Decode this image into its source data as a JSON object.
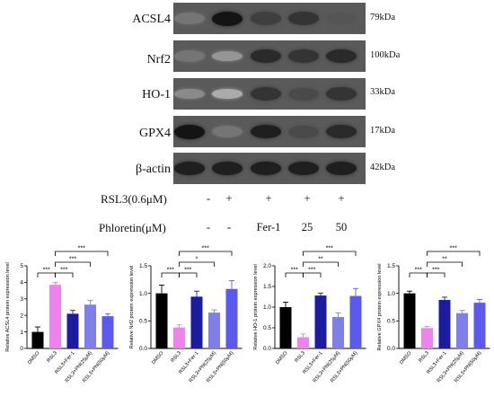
{
  "blot": {
    "rows": [
      {
        "protein": "ACSL4",
        "size": "79kDa",
        "intensity": [
          0.55,
          1.0,
          0.8,
          0.85,
          0.7
        ]
      },
      {
        "protein": "Nrf2",
        "size": "100kDa",
        "intensity": [
          0.55,
          0.4,
          0.9,
          0.85,
          0.9
        ]
      },
      {
        "protein": "HO-1",
        "size": "33kDa",
        "intensity": [
          0.45,
          0.3,
          0.85,
          0.75,
          0.85
        ]
      },
      {
        "protein": "GPX4",
        "size": "17kDa",
        "intensity": [
          1.0,
          0.55,
          0.95,
          0.75,
          0.9
        ]
      },
      {
        "protein": "β-actin",
        "size": "42kDa",
        "intensity": [
          0.95,
          0.95,
          0.95,
          0.95,
          0.95
        ]
      }
    ]
  },
  "treatments": [
    {
      "label": "RSL3(0.6μM)",
      "values": [
        "-",
        "+",
        "+",
        "+",
        "+"
      ]
    },
    {
      "label": "Phloretin(μM)",
      "values": [
        "-",
        "-",
        "Fer-1",
        "25",
        "50"
      ]
    }
  ],
  "colors": [
    "#000000",
    "#ee82ee",
    "#1c1ca0",
    "#7f7fea",
    "#5a5aee"
  ],
  "chart_data": [
    {
      "type": "bar",
      "ylabel": "Relative ACSL4 protein expression level",
      "ylim": [
        0,
        5
      ],
      "yticks": [
        0,
        1,
        2,
        3,
        4,
        5
      ],
      "categories": [
        "DMSO",
        "RSL3",
        "RSL3+Fer-1",
        "RSL3+Phl(25μM)",
        "RSL3+Phl(50μM)"
      ],
      "values": [
        1.0,
        3.85,
        2.1,
        2.65,
        1.95
      ],
      "errors": [
        0.3,
        0.15,
        0.2,
        0.25,
        0.15
      ],
      "significance": [
        {
          "from": 0,
          "to": 1,
          "label": "***"
        },
        {
          "from": 1,
          "to": 2,
          "label": "***"
        },
        {
          "from": 1,
          "to": 3,
          "label": "***"
        },
        {
          "from": 1,
          "to": 4,
          "label": "***"
        }
      ]
    },
    {
      "type": "bar",
      "ylabel": "Relative Nrf2 protein expression level",
      "ylim": [
        0,
        1.5
      ],
      "yticks": [
        0.0,
        0.5,
        1.0,
        1.5
      ],
      "categories": [
        "DMSO",
        "RSL3",
        "RSL3+Fer-1",
        "RSL3+Phl(25μM)",
        "RSL3+Phl(50μM)"
      ],
      "values": [
        1.0,
        0.38,
        0.94,
        0.65,
        1.08
      ],
      "errors": [
        0.15,
        0.05,
        0.1,
        0.05,
        0.15
      ],
      "significance": [
        {
          "from": 0,
          "to": 1,
          "label": "***"
        },
        {
          "from": 1,
          "to": 2,
          "label": "***"
        },
        {
          "from": 1,
          "to": 3,
          "label": "*"
        },
        {
          "from": 1,
          "to": 4,
          "label": "***"
        }
      ]
    },
    {
      "type": "bar",
      "ylabel": "Relative HO-1 protein expression level",
      "ylim": [
        0,
        2.0
      ],
      "yticks": [
        0.0,
        0.5,
        1.0,
        1.5,
        2.0
      ],
      "categories": [
        "DMSO",
        "RSL3",
        "RSL3+Fer-1",
        "RSL3+Phl(25μM)",
        "RSL3+Phl(50μM)"
      ],
      "values": [
        1.0,
        0.27,
        1.28,
        0.76,
        1.27
      ],
      "errors": [
        0.12,
        0.08,
        0.06,
        0.1,
        0.18
      ],
      "significance": [
        {
          "from": 0,
          "to": 1,
          "label": "***"
        },
        {
          "from": 1,
          "to": 2,
          "label": "***"
        },
        {
          "from": 1,
          "to": 3,
          "label": "**"
        },
        {
          "from": 1,
          "to": 4,
          "label": "***"
        }
      ]
    },
    {
      "type": "bar",
      "ylabel": "Relative GPX4 protein expression level",
      "ylim": [
        0,
        1.5
      ],
      "yticks": [
        0.0,
        0.5,
        1.0,
        1.5
      ],
      "categories": [
        "DMSO",
        "RSL3",
        "RSL3+Fer-1",
        "RSL3+Phl(25μM)",
        "RSL3+Phl(50μM)"
      ],
      "values": [
        1.0,
        0.37,
        0.88,
        0.64,
        0.83
      ],
      "errors": [
        0.04,
        0.03,
        0.05,
        0.05,
        0.06
      ],
      "significance": [
        {
          "from": 0,
          "to": 1,
          "label": "***"
        },
        {
          "from": 1,
          "to": 2,
          "label": "***"
        },
        {
          "from": 1,
          "to": 3,
          "label": "**"
        },
        {
          "from": 1,
          "to": 4,
          "label": "***"
        }
      ]
    }
  ]
}
